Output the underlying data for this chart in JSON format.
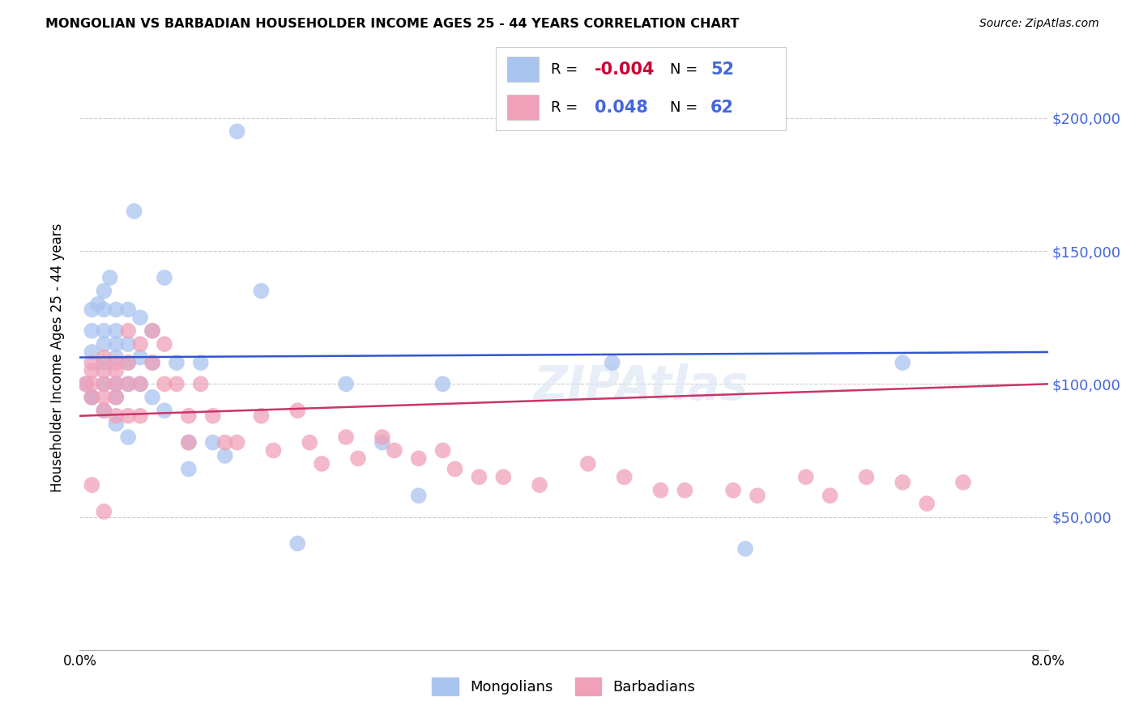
{
  "title": "MONGOLIAN VS BARBADIAN HOUSEHOLDER INCOME AGES 25 - 44 YEARS CORRELATION CHART",
  "source": "Source: ZipAtlas.com",
  "ylabel": "Householder Income Ages 25 - 44 years",
  "xlim": [
    0.0,
    0.08
  ],
  "ylim": [
    0,
    220000
  ],
  "yticks": [
    0,
    50000,
    100000,
    150000,
    200000
  ],
  "ytick_labels": [
    "",
    "$50,000",
    "$100,000",
    "$150,000",
    "$200,000"
  ],
  "xticks": [
    0.0,
    0.01,
    0.02,
    0.03,
    0.04,
    0.05,
    0.06,
    0.07,
    0.08
  ],
  "xtick_labels": [
    "0.0%",
    "",
    "",
    "",
    "",
    "",
    "",
    "",
    "8.0%"
  ],
  "mongolian_color": "#aac4f0",
  "barbadian_color": "#f0a0b8",
  "trend_mongolian_color": "#3355cc",
  "trend_barbadian_color": "#cc3366",
  "legend_blue": "#4466dd",
  "legend_red": "#cc0033",
  "legend_R_mongolian": "-0.004",
  "legend_N_mongolian": "52",
  "legend_R_barbadian": "0.048",
  "legend_N_barbadian": "62",
  "mongolian_x": [
    0.0005,
    0.001,
    0.001,
    0.001,
    0.001,
    0.0015,
    0.002,
    0.002,
    0.002,
    0.002,
    0.002,
    0.002,
    0.0025,
    0.003,
    0.003,
    0.003,
    0.003,
    0.003,
    0.003,
    0.004,
    0.004,
    0.004,
    0.004,
    0.0045,
    0.005,
    0.005,
    0.005,
    0.006,
    0.006,
    0.006,
    0.007,
    0.007,
    0.008,
    0.009,
    0.009,
    0.01,
    0.011,
    0.012,
    0.013,
    0.015,
    0.018,
    0.022,
    0.025,
    0.028,
    0.03,
    0.044,
    0.055,
    0.068,
    0.001,
    0.002,
    0.003,
    0.004
  ],
  "mongolian_y": [
    100000,
    128000,
    120000,
    112000,
    95000,
    130000,
    135000,
    128000,
    120000,
    115000,
    108000,
    100000,
    140000,
    128000,
    120000,
    115000,
    110000,
    100000,
    95000,
    128000,
    115000,
    108000,
    100000,
    165000,
    125000,
    110000,
    100000,
    120000,
    108000,
    95000,
    140000,
    90000,
    108000,
    78000,
    68000,
    108000,
    78000,
    73000,
    195000,
    135000,
    40000,
    100000,
    78000,
    58000,
    100000,
    108000,
    38000,
    108000,
    95000,
    90000,
    85000,
    80000
  ],
  "barbadian_x": [
    0.0005,
    0.001,
    0.001,
    0.001,
    0.001,
    0.002,
    0.002,
    0.002,
    0.002,
    0.002,
    0.003,
    0.003,
    0.003,
    0.003,
    0.003,
    0.004,
    0.004,
    0.004,
    0.004,
    0.005,
    0.005,
    0.005,
    0.006,
    0.006,
    0.007,
    0.007,
    0.008,
    0.009,
    0.009,
    0.01,
    0.011,
    0.012,
    0.013,
    0.015,
    0.016,
    0.018,
    0.019,
    0.02,
    0.022,
    0.023,
    0.025,
    0.026,
    0.028,
    0.03,
    0.031,
    0.033,
    0.035,
    0.038,
    0.042,
    0.045,
    0.048,
    0.05,
    0.054,
    0.056,
    0.06,
    0.062,
    0.065,
    0.068,
    0.07,
    0.073,
    0.001,
    0.002
  ],
  "barbadian_y": [
    100000,
    108000,
    105000,
    100000,
    95000,
    110000,
    105000,
    100000,
    95000,
    90000,
    108000,
    105000,
    100000,
    95000,
    88000,
    120000,
    108000,
    100000,
    88000,
    115000,
    100000,
    88000,
    120000,
    108000,
    115000,
    100000,
    100000,
    88000,
    78000,
    100000,
    88000,
    78000,
    78000,
    88000,
    75000,
    90000,
    78000,
    70000,
    80000,
    72000,
    80000,
    75000,
    72000,
    75000,
    68000,
    65000,
    65000,
    62000,
    70000,
    65000,
    60000,
    60000,
    60000,
    58000,
    65000,
    58000,
    65000,
    63000,
    55000,
    63000,
    62000,
    52000
  ]
}
